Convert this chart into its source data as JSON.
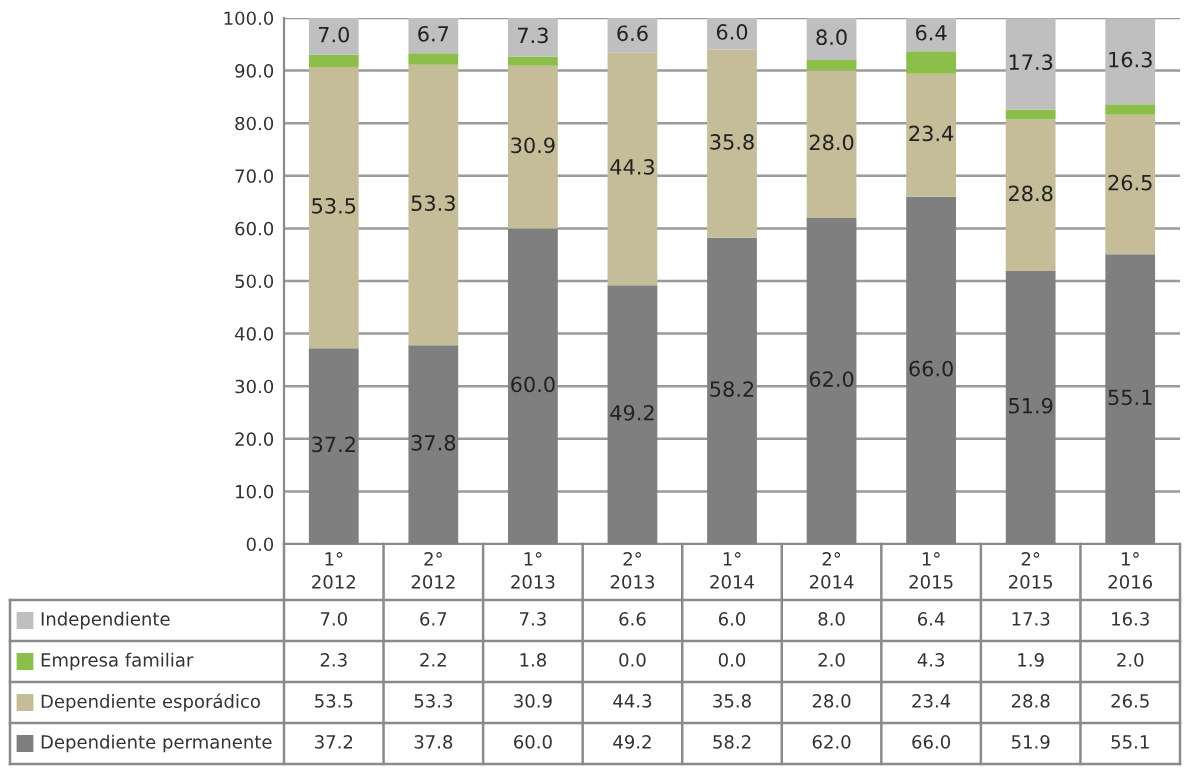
{
  "chart_data": {
    "type": "bar",
    "stacked": true,
    "data_labels": true,
    "grid": "y",
    "legend": "bottom",
    "categories": [
      "1°\n2012",
      "2°\n2012",
      "1°\n2013",
      "2°\n2013",
      "1°\n2014",
      "2°\n2014",
      "1°\n2015",
      "2°\n2015",
      "1°\n2016"
    ],
    "ylim": [
      0,
      100
    ],
    "yticks": [
      {
        "value": 0,
        "label": "0.0"
      },
      {
        "value": 10,
        "label": "10.0"
      },
      {
        "value": 20,
        "label": "20.0"
      },
      {
        "value": 30,
        "label": "30.0"
      },
      {
        "value": 40,
        "label": "40.0"
      },
      {
        "value": 50,
        "label": "50.0"
      },
      {
        "value": 60,
        "label": "60.0"
      },
      {
        "value": 70,
        "label": "70.0"
      },
      {
        "value": 80,
        "label": "80.0"
      },
      {
        "value": 90,
        "label": "90.0"
      },
      {
        "value": 100,
        "label": "100.0"
      }
    ],
    "series": [
      {
        "name": "Dependiente permanente",
        "color": "#7f7f7f",
        "values": [
          37.2,
          37.8,
          60.0,
          49.2,
          58.2,
          62.0,
          66.0,
          51.9,
          55.1
        ],
        "value_labels": [
          "37.2",
          "37.8",
          "60.0",
          "49.2",
          "58.2",
          "62.0",
          "66.0",
          "51.9",
          "55.1"
        ]
      },
      {
        "name": "Dependiente esporádico",
        "color": "#c4bd97",
        "values": [
          53.5,
          53.3,
          30.9,
          44.3,
          35.8,
          28.0,
          23.4,
          28.8,
          26.5
        ],
        "value_labels": [
          "53.5",
          "53.3",
          "30.9",
          "44.3",
          "35.8",
          "28.0",
          "23.4",
          "28.8",
          "26.5"
        ]
      },
      {
        "name": "Empresa familiar",
        "color": "#8cbf4a",
        "values": [
          2.3,
          2.2,
          1.8,
          0.0,
          0.0,
          2.0,
          4.3,
          1.9,
          2.0
        ],
        "value_labels": [
          "2.3",
          "2.2",
          "1.8",
          "0.0",
          "0.0",
          "2.0",
          "4.3",
          "1.9",
          "2.0"
        ]
      },
      {
        "name": "Independiente",
        "color": "#bfbfbf",
        "values": [
          7.0,
          6.7,
          7.3,
          6.6,
          6.0,
          8.0,
          6.4,
          17.3,
          16.3
        ],
        "value_labels": [
          "7.0",
          "6.7",
          "7.3",
          "6.6",
          "6.0",
          "8.0",
          "6.4",
          "17.3",
          "16.3"
        ]
      }
    ]
  }
}
